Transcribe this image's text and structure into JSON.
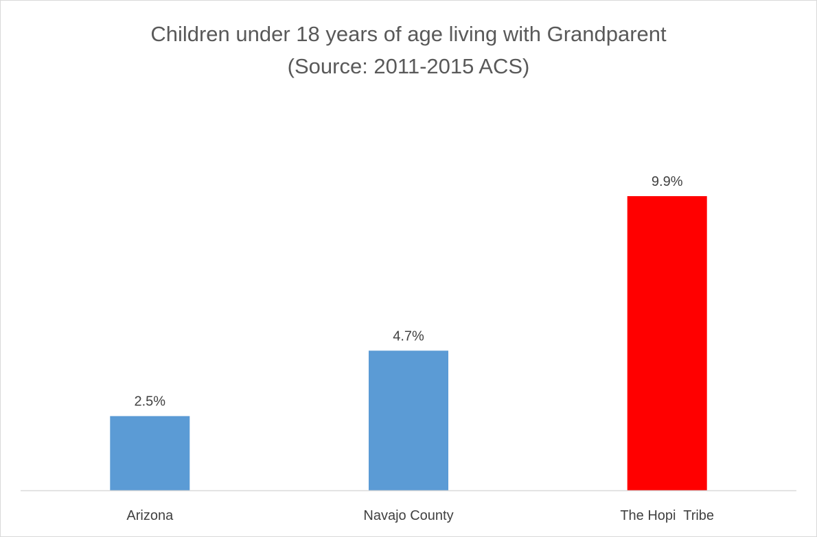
{
  "chart_data": {
    "type": "bar",
    "title": "Children under 18 years of age living with Grandparent",
    "subtitle": "(Source: 2011-2015 ACS)",
    "categories": [
      "Arizona",
      "Navajo County",
      "The Hopi  Tribe"
    ],
    "values": [
      2.5,
      4.7,
      9.9
    ],
    "data_labels": [
      "2.5%",
      "4.7%",
      "9.9%"
    ],
    "bar_colors": [
      "#5b9bd5",
      "#5b9bd5",
      "#ff0000"
    ],
    "ylim": [
      0,
      12
    ],
    "grid": false,
    "legend": "none"
  }
}
